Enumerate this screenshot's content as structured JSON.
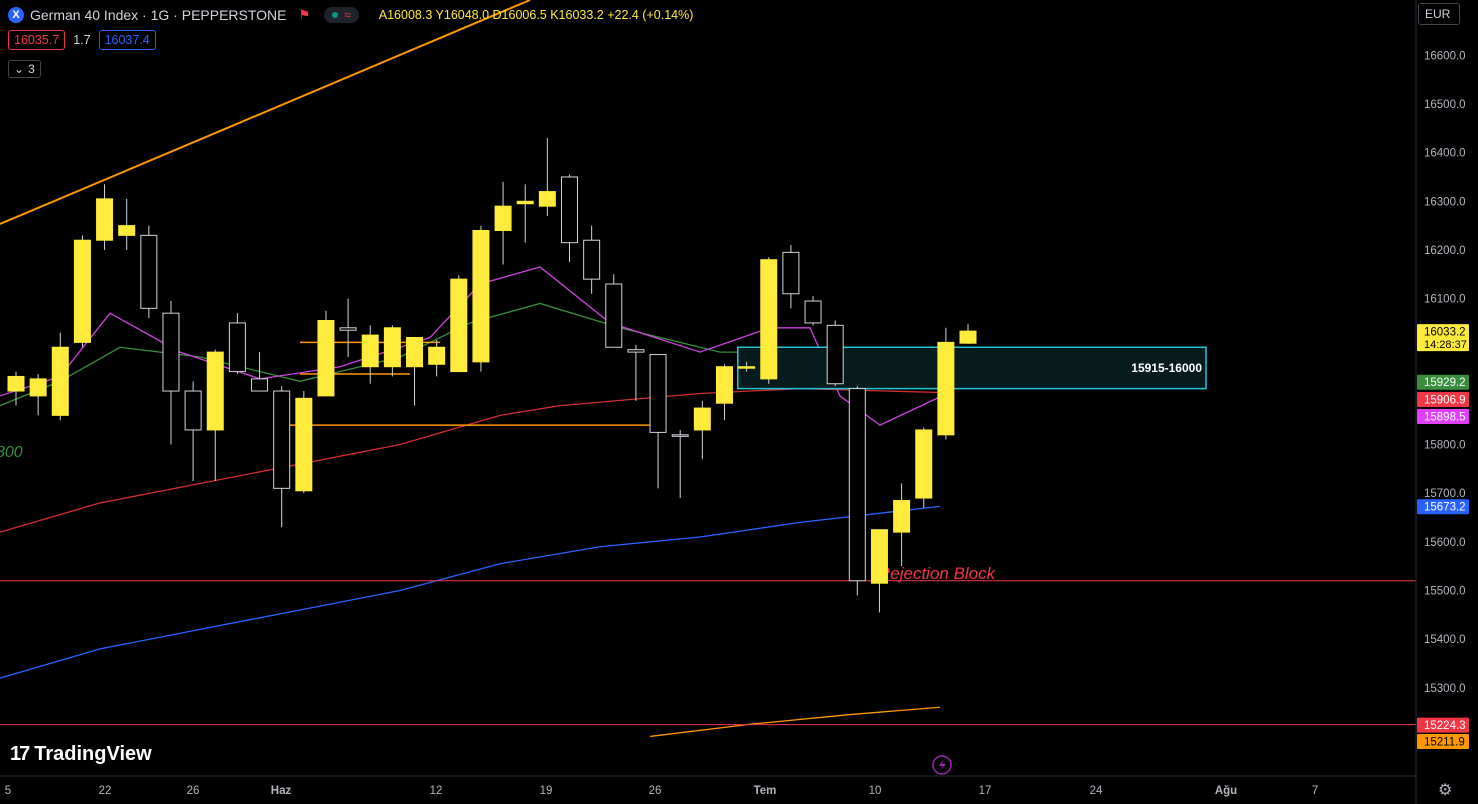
{
  "header": {
    "symbol_icon_letter": "X",
    "title": "German 40 Index · 1G · PEPPERSTONE",
    "ohlc": "A16008.3 Y16048.0 D16006.5 K16033.2 +22.4 (+0.14%)",
    "bid": "16035.7",
    "spread": "1.7",
    "ask": "16037.4",
    "indicators_toggle": "3",
    "currency": "EUR"
  },
  "branding": {
    "logo_text": "TradingView"
  },
  "colors": {
    "up": "#ffeb3b",
    "down": "#000000",
    "wick": "#d1d4dc",
    "trend": "#ff9800",
    "ema_blue": "#2962ff",
    "ema_red": "#d32f2f",
    "ema_purple": "#cc44dd",
    "ema_green": "#388e3c",
    "hline": "#f23645",
    "zone_border": "#21c6da",
    "zone_fill": "#071a1c"
  },
  "chart_data": {
    "type": "candlestick",
    "instrument": "German 40 Index",
    "timeframe": "1G",
    "y_ticks": [
      16600,
      16500,
      16400,
      16300,
      16200,
      16100,
      15800,
      15700,
      15600,
      15500,
      15400,
      15300
    ],
    "x_ticks": [
      "5",
      "22",
      "26",
      "Haz",
      "12",
      "19",
      "26",
      "Tem",
      "10",
      "17",
      "24",
      "Ağu",
      "7"
    ],
    "candles": [
      {
        "o": 15910,
        "h": 15950,
        "l": 15880,
        "c": 15940
      },
      {
        "o": 15900,
        "h": 15945,
        "l": 15860,
        "c": 15935
      },
      {
        "o": 15860,
        "h": 16030,
        "l": 15850,
        "c": 16000
      },
      {
        "o": 16010,
        "h": 16230,
        "l": 16000,
        "c": 16220
      },
      {
        "o": 16220,
        "h": 16335,
        "l": 16200,
        "c": 16305
      },
      {
        "o": 16230,
        "h": 16305,
        "l": 16200,
        "c": 16250
      },
      {
        "o": 16230,
        "h": 16250,
        "l": 16060,
        "c": 16080
      },
      {
        "o": 16070,
        "h": 16095,
        "l": 15800,
        "c": 15910
      },
      {
        "o": 15910,
        "h": 15930,
        "l": 15725,
        "c": 15830
      },
      {
        "o": 15830,
        "h": 15995,
        "l": 15725,
        "c": 15990
      },
      {
        "o": 16050,
        "h": 16070,
        "l": 15945,
        "c": 15950
      },
      {
        "o": 15935,
        "h": 15990,
        "l": 15910,
        "c": 15910
      },
      {
        "o": 15910,
        "h": 15920,
        "l": 15630,
        "c": 15710
      },
      {
        "o": 15705,
        "h": 15910,
        "l": 15700,
        "c": 15895
      },
      {
        "o": 15900,
        "h": 16075,
        "l": 15905,
        "c": 16055
      },
      {
        "o": 16040,
        "h": 16100,
        "l": 15980,
        "c": 16035
      },
      {
        "o": 15960,
        "h": 16045,
        "l": 15925,
        "c": 16025
      },
      {
        "o": 15960,
        "h": 16045,
        "l": 15940,
        "c": 16040
      },
      {
        "o": 15960,
        "h": 16020,
        "l": 15880,
        "c": 16020
      },
      {
        "o": 15965,
        "h": 16015,
        "l": 15940,
        "c": 16000
      },
      {
        "o": 15950,
        "h": 16148,
        "l": 15950,
        "c": 16140
      },
      {
        "o": 15970,
        "h": 16250,
        "l": 15950,
        "c": 16240
      },
      {
        "o": 16240,
        "h": 16340,
        "l": 16170,
        "c": 16290
      },
      {
        "o": 16295,
        "h": 16335,
        "l": 16215,
        "c": 16300
      },
      {
        "o": 16290,
        "h": 16430,
        "l": 16270,
        "c": 16320
      },
      {
        "o": 16350,
        "h": 16355,
        "l": 16175,
        "c": 16215
      },
      {
        "o": 16220,
        "h": 16250,
        "l": 16110,
        "c": 16140
      },
      {
        "o": 16130,
        "h": 16150,
        "l": 16000,
        "c": 16000
      },
      {
        "o": 15995,
        "h": 16005,
        "l": 15890,
        "c": 15990
      },
      {
        "o": 15985,
        "h": 15985,
        "l": 15710,
        "c": 15825
      },
      {
        "o": 15820,
        "h": 15830,
        "l": 15690,
        "c": 15818
      },
      {
        "o": 15830,
        "h": 15890,
        "l": 15770,
        "c": 15875
      },
      {
        "o": 15885,
        "h": 15965,
        "l": 15850,
        "c": 15960
      },
      {
        "o": 15960,
        "h": 15970,
        "l": 15950,
        "c": 15960
      },
      {
        "o": 15935,
        "h": 16185,
        "l": 15925,
        "c": 16180
      },
      {
        "o": 16195,
        "h": 16210,
        "l": 16080,
        "c": 16110
      },
      {
        "o": 16095,
        "h": 16105,
        "l": 16045,
        "c": 16050
      },
      {
        "o": 16045,
        "h": 16055,
        "l": 15920,
        "c": 15925
      },
      {
        "o": 15915,
        "h": 15920,
        "l": 15490,
        "c": 15520
      },
      {
        "o": 15515,
        "h": 15625,
        "l": 15455,
        "c": 15625
      },
      {
        "o": 15620,
        "h": 15720,
        "l": 15550,
        "c": 15685
      },
      {
        "o": 15690,
        "h": 15835,
        "l": 15670,
        "c": 15830
      },
      {
        "o": 15820,
        "h": 16040,
        "l": 15810,
        "c": 16010
      },
      {
        "o": 16008.3,
        "h": 16048,
        "l": 16006.5,
        "c": 16033.2
      }
    ],
    "overlays": {
      "horizontal_lines": [
        15520,
        15224.3
      ],
      "zone": {
        "top": 16000,
        "bottom": 15915,
        "label": "15915-16000"
      },
      "annotation": "Rejection Block"
    },
    "price_labels": [
      {
        "text": "16033.2",
        "sub": "14:28:37",
        "bg": "#ffeb3b",
        "fg": "#000000"
      },
      {
        "text": "15929.2",
        "bg": "#388e3c",
        "fg": "#ffffff"
      },
      {
        "text": "15906.9",
        "bg": "#f23645",
        "fg": "#ffffff"
      },
      {
        "text": "15898.5",
        "bg": "#e040fb",
        "fg": "#ffffff"
      },
      {
        "text": "15673.2",
        "bg": "#2962ff",
        "fg": "#ffffff"
      },
      {
        "text": "15224.3",
        "bg": "#f23645",
        "fg": "#ffffff"
      },
      {
        "text": "15211.9",
        "bg": "#ff9800",
        "fg": "#000000"
      }
    ],
    "left_edge_label": "800"
  }
}
